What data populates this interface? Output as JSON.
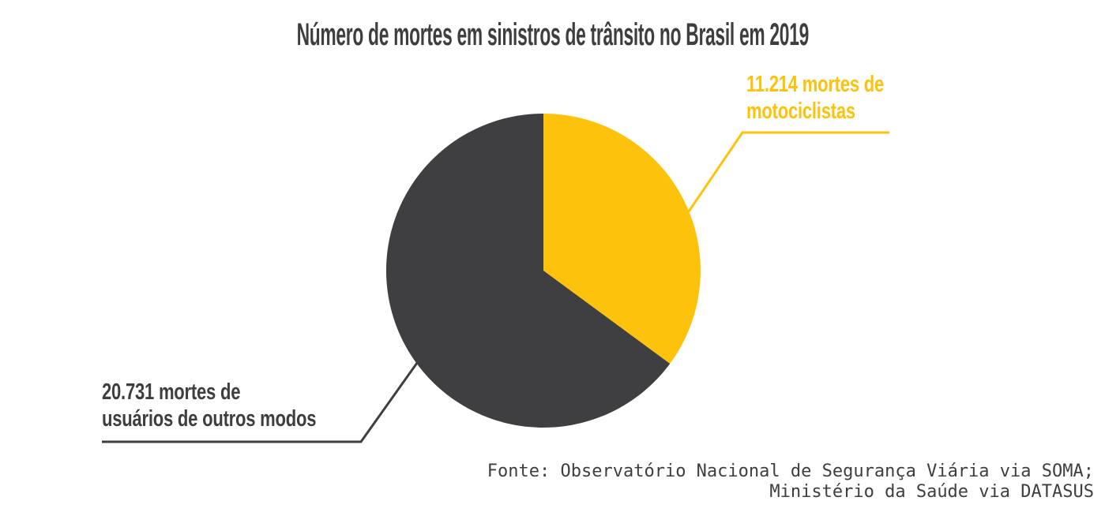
{
  "page": {
    "background_color": "#ffffff"
  },
  "chart_data": {
    "type": "pie",
    "title": "Número de mortes em sinistros de trânsito no Brasil em 2019",
    "title_color": "#3e3e40",
    "legend_position": "none",
    "start_angle_deg": 0,
    "direction": "clockwise",
    "total": 31945,
    "slices": [
      {
        "name": "motociclistas",
        "value": 11214,
        "color": "#fdc20b",
        "label_lines": [
          "11.214 mortes de",
          "motociclistas"
        ]
      },
      {
        "name": "usuarios-de-outros-modos",
        "value": 20731,
        "color": "#3f3f41",
        "label_lines": [
          "20.731 mortes de",
          "usuários de outros modos"
        ]
      }
    ],
    "source_lines": [
      "Fonte: Observatório Nacional de Segurança Viária via SOMA;",
      "Ministério da Saúde via DATASUS"
    ]
  }
}
